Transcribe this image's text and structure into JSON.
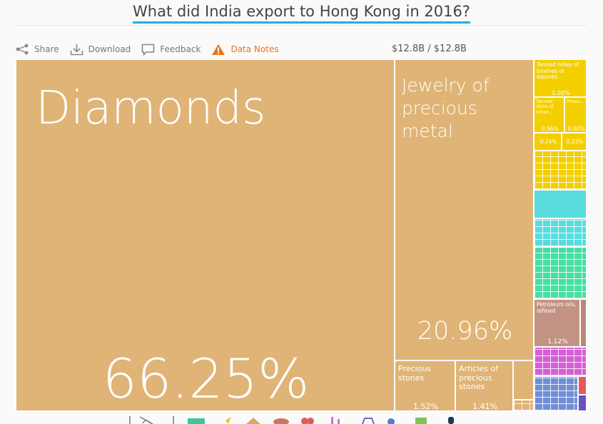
{
  "header": {
    "title": "What did India export to Hong Kong in 2016?"
  },
  "toolbar": {
    "share": "Share",
    "download": "Download",
    "feedback": "Feedback",
    "data_notes": "Data Notes",
    "total": "$12.8B / $12.8B"
  },
  "colors": {
    "accent": "#29aae2",
    "precious_metals": "#dfb476",
    "animal_hides": "#f3cf00",
    "textiles": "#58dcde",
    "machines": "#47dea1",
    "mineral_products": "#c29382",
    "chemicals": "#d65ed6",
    "other": "#6f8fd6",
    "warning": "#e8751a"
  },
  "treemap": {
    "diamonds": {
      "label": "Diamonds",
      "pct": "66.25%"
    },
    "jewelry": {
      "label": "Jewelry of precious metal",
      "pct": "20.96%"
    },
    "precious_stones": {
      "label": "Precious stones",
      "pct": "1.52%"
    },
    "articles_precious_stones": {
      "label": "Articles of precious stones",
      "pct": "1.41%"
    },
    "tanned_hides": {
      "label": "Tanned hides of bovines or equines",
      "pct": "1.00%"
    },
    "tanned_skins": {
      "label": "Tanned skins of other...",
      "pct": "0.56%"
    },
    "prese": {
      "label": "Prese...",
      "pct": "0.40%"
    },
    "small_a": {
      "pct": "0.24%"
    },
    "small_b": {
      "pct": "0.23%"
    },
    "petroleum": {
      "label": "Petroleum oils, refined",
      "pct": "1.12%"
    }
  },
  "category_icons": [
    "no-filter-icon",
    "car-icon",
    "plant-icon",
    "box-icon",
    "animal-icon",
    "heart-icon",
    "chair-icon",
    "bag-icon",
    "gear-icon",
    "chip-icon",
    "question-icon"
  ]
}
